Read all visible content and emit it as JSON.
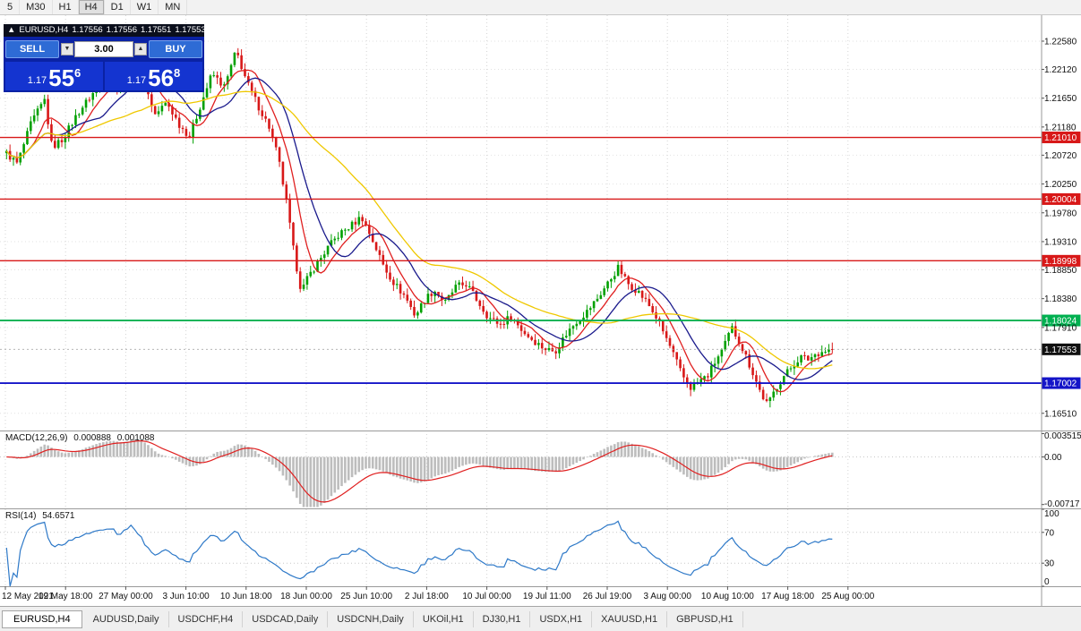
{
  "toolbar": {
    "timeframes": [
      "5",
      "M30",
      "H1",
      "H4",
      "D1",
      "W1",
      "MN"
    ],
    "active": "H4"
  },
  "chart_header": {
    "arrow": "▲",
    "symbol": "EURUSD,H4",
    "open": "1.17556",
    "high": "1.17556",
    "low": "1.17551",
    "close": "1.17553"
  },
  "trade_panel": {
    "sell_label": "SELL",
    "buy_label": "BUY",
    "volume": "3.00",
    "down_glyph": "▼",
    "up_glyph": "▲",
    "sell_price": {
      "prefix": "1.17",
      "big": "55",
      "sup": "6"
    },
    "buy_price": {
      "prefix": "1.17",
      "big": "56",
      "sup": "8"
    }
  },
  "indicators": {
    "macd": {
      "name": "MACD(12,26,9)",
      "main_value": "0.000888",
      "signal_value": "0.001088"
    },
    "rsi": {
      "name": "RSI(14)",
      "value": "54.6571"
    }
  },
  "tabs": {
    "items": [
      "EURUSD,H4",
      "AUDUSD,Daily",
      "USDCHF,H4",
      "USDCAD,Daily",
      "USDCNH,Daily",
      "UKOil,H1",
      "DJ30,H1",
      "USDX,H1",
      "XAUUSD,H1",
      "GBPUSD,H1"
    ],
    "active": "EURUSD,H4"
  },
  "chart_data": {
    "type": "candlestick",
    "symbol": "EURUSD",
    "timeframe": "H4",
    "last_close": 1.17553,
    "up_color": "#00A000",
    "down_color": "#D81818",
    "candles_count": 240,
    "candle_noise": 0.0012,
    "wick_noise": 0.0011,
    "price_keypoints": [
      [
        0.0,
        1.2075
      ],
      [
        0.013,
        1.2058
      ],
      [
        0.03,
        1.2125
      ],
      [
        0.046,
        1.2162
      ],
      [
        0.055,
        1.2085
      ],
      [
        0.068,
        1.2098
      ],
      [
        0.086,
        1.214
      ],
      [
        0.104,
        1.2172
      ],
      [
        0.122,
        1.2198
      ],
      [
        0.138,
        1.2183
      ],
      [
        0.153,
        1.2238
      ],
      [
        0.166,
        1.2192
      ],
      [
        0.18,
        1.2138
      ],
      [
        0.194,
        1.2158
      ],
      [
        0.21,
        1.212
      ],
      [
        0.222,
        1.2103
      ],
      [
        0.236,
        1.2158
      ],
      [
        0.249,
        1.2205
      ],
      [
        0.264,
        1.2183
      ],
      [
        0.278,
        1.2242
      ],
      [
        0.292,
        1.2188
      ],
      [
        0.305,
        1.2152
      ],
      [
        0.318,
        1.2118
      ],
      [
        0.329,
        1.2068
      ],
      [
        0.339,
        1.1995
      ],
      [
        0.348,
        1.1912
      ],
      [
        0.357,
        1.185
      ],
      [
        0.366,
        1.1875
      ],
      [
        0.377,
        1.1897
      ],
      [
        0.389,
        1.1921
      ],
      [
        0.403,
        1.1943
      ],
      [
        0.418,
        1.1958
      ],
      [
        0.43,
        1.1972
      ],
      [
        0.444,
        1.1931
      ],
      [
        0.457,
        1.189
      ],
      [
        0.47,
        1.1862
      ],
      [
        0.483,
        1.1841
      ],
      [
        0.495,
        1.181
      ],
      [
        0.506,
        1.1836
      ],
      [
        0.518,
        1.1852
      ],
      [
        0.531,
        1.1831
      ],
      [
        0.544,
        1.1857
      ],
      [
        0.557,
        1.1862
      ],
      [
        0.571,
        1.1833
      ],
      [
        0.584,
        1.1807
      ],
      [
        0.598,
        1.1796
      ],
      [
        0.611,
        1.1809
      ],
      [
        0.625,
        1.1785
      ],
      [
        0.638,
        1.177
      ],
      [
        0.651,
        1.1757
      ],
      [
        0.664,
        1.1752
      ],
      [
        0.677,
        1.1779
      ],
      [
        0.69,
        1.1801
      ],
      [
        0.703,
        1.1817
      ],
      [
        0.717,
        1.1841
      ],
      [
        0.73,
        1.1867
      ],
      [
        0.741,
        1.1889
      ],
      [
        0.752,
        1.1863
      ],
      [
        0.764,
        1.1851
      ],
      [
        0.776,
        1.1831
      ],
      [
        0.787,
        1.1807
      ],
      [
        0.798,
        1.1776
      ],
      [
        0.808,
        1.1746
      ],
      [
        0.818,
        1.1713
      ],
      [
        0.829,
        1.1692
      ],
      [
        0.838,
        1.1703
      ],
      [
        0.849,
        1.1712
      ],
      [
        0.859,
        1.1737
      ],
      [
        0.869,
        1.1759
      ],
      [
        0.878,
        1.1791
      ],
      [
        0.887,
        1.1769
      ],
      [
        0.896,
        1.1742
      ],
      [
        0.905,
        1.1713
      ],
      [
        0.914,
        1.1682
      ],
      [
        0.922,
        1.1664
      ],
      [
        0.931,
        1.1691
      ],
      [
        0.941,
        1.1711
      ],
      [
        0.951,
        1.1727
      ],
      [
        0.961,
        1.1743
      ],
      [
        0.971,
        1.1739
      ],
      [
        0.981,
        1.1749
      ],
      [
        0.991,
        1.1753
      ],
      [
        1.0,
        1.17553
      ]
    ],
    "moving_averages": [
      {
        "period": 8,
        "color": "#E02020"
      },
      {
        "period": 16,
        "color": "#1A1A8C"
      },
      {
        "period": 40,
        "color": "#EFC800"
      }
    ],
    "y_axis": {
      "pmax": 1.23003,
      "pmin": 1.16229,
      "visible_ticks": [
        "1.22580",
        "1.22120",
        "1.21650",
        "1.21180",
        "1.20720",
        "1.20250",
        "1.19780",
        "1.19310",
        "1.18850",
        "1.18380",
        "1.17910",
        "1.16510"
      ]
    },
    "x_axis": {
      "grid_step": 67.2,
      "labels": [
        "12 May 2021",
        "19 May 18:00",
        "27 May 00:00",
        "3 Jun 10:00",
        "10 Jun 18:00",
        "18 Jun 00:00",
        "25 Jun 10:00",
        "2 Jul 18:00",
        "10 Jul 00:00",
        "19 Jul 11:00",
        "26 Jul 19:00",
        "3 Aug 00:00",
        "10 Aug 10:00",
        "17 Aug 18:00",
        "25 Aug 00:00"
      ]
    },
    "horizontal_lines": [
      {
        "price": 1.2101,
        "label": "1.21010",
        "color": "#D81818",
        "width": 1.4
      },
      {
        "price": 1.20004,
        "label": "1.20004",
        "color": "#D81818",
        "width": 1.4
      },
      {
        "price": 1.18998,
        "label": "1.18998",
        "color": "#D81818",
        "width": 1.4
      },
      {
        "price": 1.18024,
        "label": "1.18024",
        "color": "#00B050",
        "width": 1.8
      },
      {
        "price": 1.17002,
        "label": "1.17002",
        "color": "#1414C8",
        "width": 1.8
      }
    ],
    "current_price_label": {
      "price": 1.17553,
      "label": "1.17553",
      "bg": "#101010"
    },
    "macd": {
      "fast": 12,
      "slow": 26,
      "signal": 9,
      "hist_color": "#BDBDBD",
      "signal_color": "#E02020",
      "vmax": 0.00385,
      "vmin": -0.00775,
      "axis_labels": [
        "0.003515",
        "0.00",
        "-0.00717"
      ]
    },
    "rsi": {
      "period": 14,
      "color": "#2E79C8",
      "levels": [
        70,
        30
      ],
      "vmax": 100,
      "vmin": 0,
      "axis_labels": [
        "100",
        "70",
        "30",
        "0"
      ]
    }
  }
}
